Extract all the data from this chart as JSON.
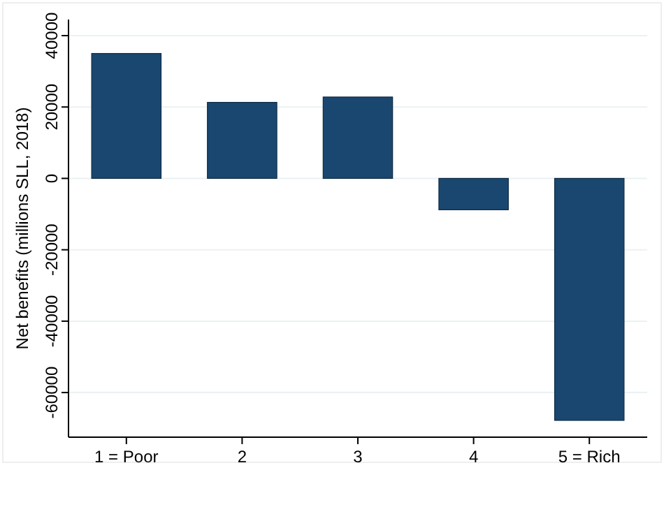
{
  "chart_data": {
    "type": "bar",
    "ylabel": "Net benefits (millions SLL, 2018)",
    "categories": [
      "1 = Poor",
      "2",
      "3",
      "4",
      "5 = Rich"
    ],
    "values": [
      35000,
      21300,
      22800,
      -8800,
      -67800
    ],
    "color": "#1a476f",
    "ylim": [
      -72500,
      44500
    ],
    "yticks": [
      -60000,
      -40000,
      -20000,
      0,
      20000,
      40000
    ],
    "grid": "y"
  }
}
